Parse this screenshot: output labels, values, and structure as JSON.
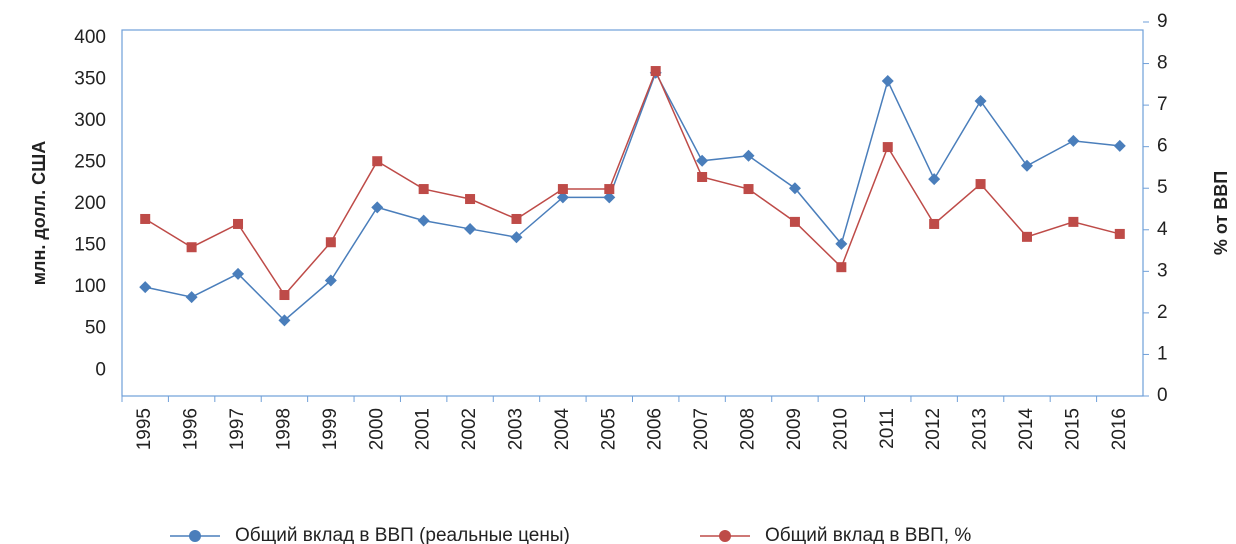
{
  "chart_data": {
    "type": "line",
    "categories": [
      "1995",
      "1996",
      "1997",
      "1998",
      "1999",
      "2000",
      "2001",
      "2002",
      "2003",
      "2004",
      "2005",
      "2006",
      "2007",
      "2008",
      "2009",
      "2010",
      "2011",
      "2012",
      "2013",
      "2014",
      "2015",
      "2016"
    ],
    "series": [
      {
        "name": "Общий вклад в ВВП (реальные цены)",
        "color": "#4a7ebb",
        "marker": "diamond",
        "values": [
          100,
          88,
          116,
          60,
          108,
          196,
          180,
          170,
          160,
          208,
          208,
          358,
          252,
          258,
          219,
          152,
          348,
          230,
          324,
          246,
          276,
          270
        ]
      },
      {
        "name": "Общий вклад в ВВП, %",
        "color": "#be4b48",
        "marker": "square",
        "axis": "y2",
        "values": [
          4.26,
          3.58,
          4.14,
          2.43,
          3.7,
          5.65,
          4.98,
          4.74,
          4.26,
          4.98,
          4.98,
          7.82,
          5.27,
          4.98,
          4.19,
          3.1,
          5.99,
          4.14,
          5.1,
          3.83,
          4.19,
          3.9
        ]
      }
    ],
    "ylabel": "млн. долл. США",
    "y2label": "% от ВВП",
    "ylim": [
      -31,
      419
    ],
    "yticks": [
      0,
      50,
      100,
      150,
      200,
      250,
      300,
      350,
      400
    ],
    "y2lim": [
      0,
      9
    ],
    "y2ticks": [
      0,
      1,
      2,
      3,
      4,
      5,
      6,
      7,
      8,
      9
    ],
    "grid": false,
    "legend": "bottom"
  }
}
